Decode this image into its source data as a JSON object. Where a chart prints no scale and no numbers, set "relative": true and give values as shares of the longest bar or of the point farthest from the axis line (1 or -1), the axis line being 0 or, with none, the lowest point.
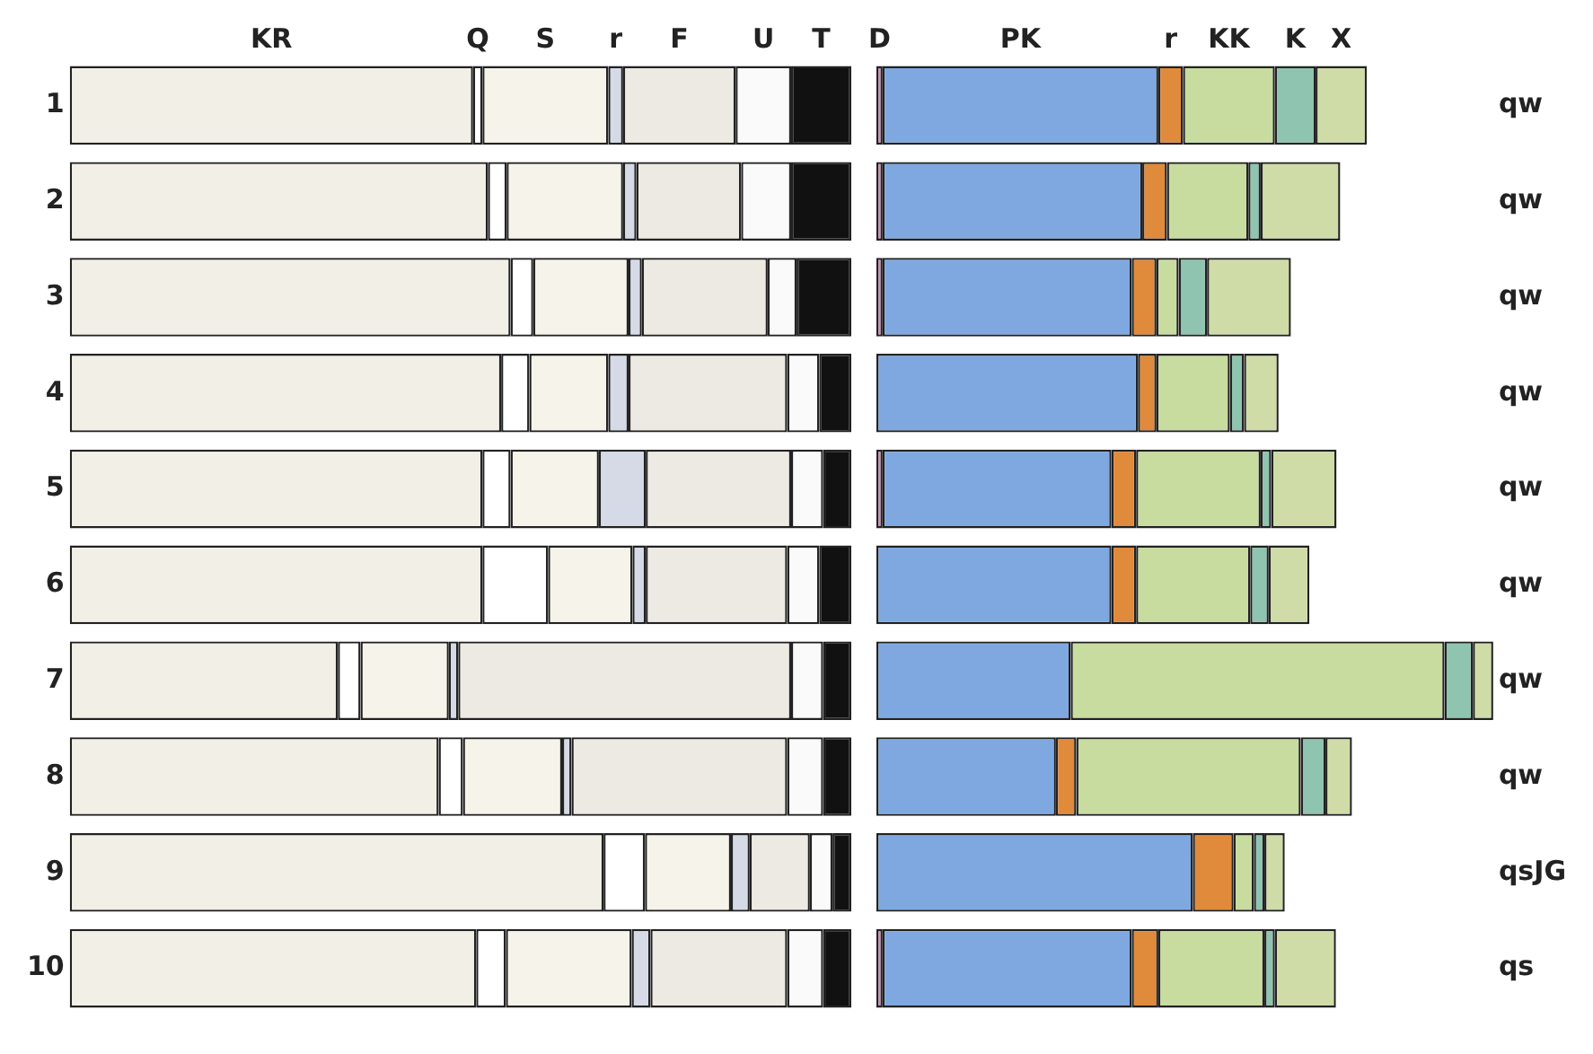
{
  "chart_data": [
    {
      "type": "bar",
      "orientation": "horizontal",
      "stacked": true,
      "relative": true,
      "legend": false,
      "categories": [
        "1",
        "2",
        "3",
        "4",
        "5",
        "6",
        "7",
        "8",
        "9",
        "10"
      ],
      "series": [
        {
          "name": "KR",
          "color": "#f1efe6",
          "values": [
            0.516,
            0.535,
            0.564,
            0.552,
            0.528,
            0.528,
            0.343,
            0.472,
            0.683,
            0.52
          ]
        },
        {
          "name": "Q",
          "color": "#ffffff",
          "values": [
            0.012,
            0.024,
            0.029,
            0.036,
            0.036,
            0.084,
            0.029,
            0.031,
            0.053,
            0.038
          ]
        },
        {
          "name": "S",
          "color": "#f6f4ea",
          "values": [
            0.161,
            0.149,
            0.122,
            0.101,
            0.113,
            0.108,
            0.113,
            0.127,
            0.11,
            0.161
          ]
        },
        {
          "name": "r",
          "color": "#d6dae6",
          "values": [
            0.019,
            0.017,
            0.017,
            0.026,
            0.06,
            0.017,
            0.012,
            0.012,
            0.024,
            0.024
          ]
        },
        {
          "name": "F",
          "color": "#eceae2",
          "values": [
            0.144,
            0.134,
            0.161,
            0.203,
            0.186,
            0.181,
            0.426,
            0.276,
            0.077,
            0.175
          ]
        },
        {
          "name": "U",
          "color": "#fafafa",
          "values": [
            0.071,
            0.064,
            0.037,
            0.041,
            0.041,
            0.041,
            0.041,
            0.046,
            0.029,
            0.046
          ]
        },
        {
          "name": "T",
          "color": "#111111",
          "values": [
            0.077,
            0.077,
            0.07,
            0.041,
            0.036,
            0.041,
            0.036,
            0.036,
            0.024,
            0.036
          ]
        }
      ]
    },
    {
      "type": "bar",
      "orientation": "horizontal",
      "stacked": true,
      "relative": true,
      "legend": false,
      "categories": [
        "qw",
        "qw",
        "qw",
        "qw",
        "qw",
        "qw",
        "qw",
        "qw",
        "qsJG",
        "qs"
      ],
      "series": [
        {
          "name": "D",
          "color": "#d48fb8",
          "values": [
            0.01,
            0.01,
            0.01,
            null,
            0.01,
            null,
            null,
            null,
            null,
            0.01
          ]
        },
        {
          "name": "PK",
          "color": "#7fa8e0",
          "values": [
            0.447,
            0.421,
            0.404,
            0.424,
            0.371,
            0.381,
            0.315,
            0.291,
            0.513,
            0.404
          ]
        },
        {
          "name": "r",
          "color": "#e08a3c",
          "values": [
            0.04,
            0.04,
            0.04,
            0.03,
            0.04,
            0.04,
            null,
            0.033,
            0.066,
            0.043
          ]
        },
        {
          "name": "KK",
          "color": "#c8dca0",
          "values": [
            0.149,
            0.132,
            0.036,
            0.119,
            0.202,
            0.185,
            0.606,
            0.364,
            0.033,
            0.172
          ]
        },
        {
          "name": "K",
          "color": "#8fc4b0",
          "values": [
            0.066,
            0.02,
            0.046,
            0.023,
            0.017,
            0.03,
            0.046,
            0.04,
            0.017,
            0.017
          ]
        },
        {
          "name": "X",
          "color": "#d0dca8",
          "values": [
            0.083,
            0.129,
            0.136,
            0.056,
            0.106,
            0.066,
            0.033,
            0.043,
            0.033,
            0.099
          ]
        }
      ]
    }
  ]
}
